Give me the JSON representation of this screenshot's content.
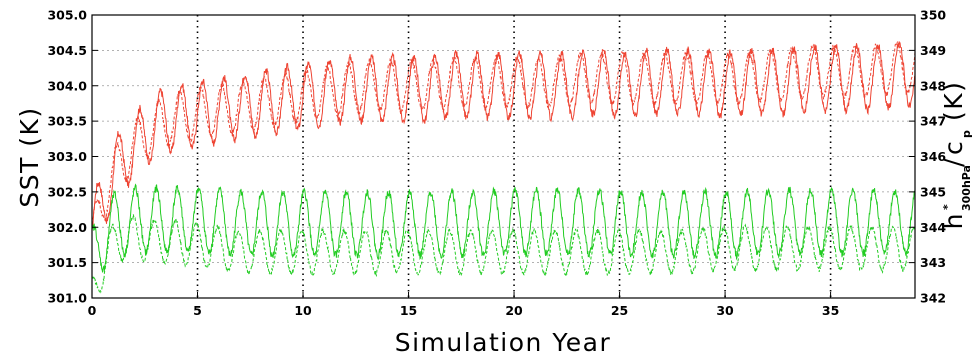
{
  "chart_data": {
    "type": "line",
    "xlabel": "Simulation Year",
    "ylabel_left": "SST (K)",
    "ylabel_right": {
      "base": "h",
      "superscript": "*",
      "subscript": "300hPa",
      "denominator": "c",
      "denominator_subscript": "p",
      "unit": "(K)"
    },
    "xlim": [
      0,
      39
    ],
    "ylim_left": [
      301.0,
      305.0
    ],
    "ylim_right": [
      342,
      350
    ],
    "x_ticks": [
      0,
      5,
      10,
      15,
      20,
      25,
      30,
      35
    ],
    "x_tick_labels": [
      "0",
      "5",
      "10",
      "15",
      "20",
      "25",
      "30",
      "35"
    ],
    "y_left_ticks": [
      301.0,
      301.5,
      302.0,
      302.5,
      303.0,
      303.5,
      304.0,
      304.5,
      305.0
    ],
    "y_left_tick_labels": [
      "301.0",
      "301.5",
      "302.0",
      "302.5",
      "303.0",
      "303.5",
      "304.0",
      "304.5",
      "305.0"
    ],
    "y_right_ticks": [
      342,
      343,
      344,
      345,
      346,
      347,
      348,
      349,
      350
    ],
    "y_right_tick_labels": [
      "342",
      "343",
      "344",
      "345",
      "346",
      "347",
      "348",
      "349",
      "350"
    ],
    "vertical_dotted_lines_at": [
      5,
      10,
      15,
      20,
      25,
      30,
      35
    ],
    "horizontal_grid": "dotted at left y ticks",
    "series": [
      {
        "axis": "right",
        "color": "#ee4433",
        "style": "solid",
        "x": [
          0,
          0.4,
          0.8,
          1.2,
          1.6,
          2,
          2.5,
          3,
          3.5,
          4,
          5,
          6,
          7,
          8,
          9,
          10,
          11,
          12,
          13,
          14,
          15,
          16,
          17,
          18,
          19,
          20,
          21,
          22,
          23,
          24,
          25,
          26,
          27,
          28,
          29,
          30,
          31,
          32,
          33,
          34,
          35,
          36,
          37,
          38,
          39
        ],
        "y": [
          343.8,
          344.6,
          345.2,
          345.7,
          346.0,
          346.3,
          346.6,
          346.9,
          347.0,
          347.1,
          347.2,
          347.3,
          347.4,
          347.5,
          347.6,
          347.7,
          347.8,
          347.9,
          347.9,
          347.9,
          347.9,
          347.9,
          348.0,
          348.0,
          348.0,
          348.0,
          348.0,
          348.0,
          348.0,
          348.1,
          348.0,
          348.1,
          348.1,
          348.1,
          348.1,
          348.0,
          348.1,
          348.1,
          348.1,
          348.2,
          348.2,
          348.2,
          348.2,
          348.3,
          348.3
        ],
        "seasonal_amplitude": 0.9
      },
      {
        "axis": "left",
        "color": "#ee4433",
        "style": "dashed",
        "x": [
          0,
          0.4,
          0.8,
          1.2,
          1.6,
          2,
          2.5,
          3,
          3.5,
          4,
          5,
          6,
          7,
          8,
          9,
          10,
          11,
          12,
          13,
          14,
          15,
          16,
          17,
          18,
          19,
          20,
          21,
          22,
          23,
          24,
          25,
          26,
          27,
          28,
          29,
          30,
          31,
          32,
          33,
          34,
          35,
          36,
          37,
          38,
          39
        ],
        "y": [
          301.8,
          302.3,
          302.6,
          302.85,
          303.0,
          303.15,
          303.3,
          303.4,
          303.5,
          303.55,
          303.6,
          303.65,
          303.7,
          303.75,
          303.8,
          303.85,
          303.9,
          303.95,
          304.0,
          304.0,
          304.0,
          304.0,
          304.05,
          304.05,
          304.05,
          304.05,
          304.05,
          304.05,
          304.1,
          304.1,
          304.1,
          304.1,
          304.1,
          304.1,
          304.1,
          304.1,
          304.1,
          304.15,
          304.15,
          304.2,
          304.2,
          304.2,
          304.2,
          304.25,
          304.25
        ],
        "seasonal_amplitude": 0.35
      },
      {
        "axis": "right",
        "color": "#22cc22",
        "style": "solid",
        "x": [
          0,
          0.4,
          0.8,
          1.2,
          1.6,
          2,
          3,
          4,
          5,
          6,
          7,
          8,
          9,
          10,
          12,
          14,
          16,
          18,
          20,
          22,
          24,
          26,
          28,
          30,
          32,
          34,
          36,
          38,
          39
        ],
        "y": [
          343.0,
          343.6,
          343.9,
          344.1,
          344.15,
          344.2,
          344.2,
          344.2,
          344.2,
          344.15,
          344.1,
          344.1,
          344.1,
          344.1,
          344.1,
          344.1,
          344.1,
          344.1,
          344.15,
          344.15,
          344.15,
          344.1,
          344.1,
          344.1,
          344.15,
          344.15,
          344.15,
          344.15,
          344.15
        ],
        "seasonal_amplitude": 0.9
      },
      {
        "axis": "left",
        "color": "#22cc22",
        "style": "dashed",
        "x": [
          0,
          0.4,
          0.8,
          1.2,
          1.6,
          2,
          3,
          4,
          5,
          6,
          7,
          8,
          9,
          10,
          12,
          14,
          16,
          18,
          20,
          22,
          24,
          26,
          28,
          30,
          32,
          34,
          36,
          38,
          39
        ],
        "y": [
          301.0,
          301.4,
          301.65,
          301.8,
          301.85,
          301.85,
          301.8,
          301.8,
          301.75,
          301.7,
          301.65,
          301.65,
          301.65,
          301.65,
          301.65,
          301.65,
          301.65,
          301.65,
          301.65,
          301.65,
          301.65,
          301.65,
          301.65,
          301.7,
          301.7,
          301.7,
          301.7,
          301.7,
          301.7
        ],
        "seasonal_amplitude": 0.3
      }
    ]
  }
}
